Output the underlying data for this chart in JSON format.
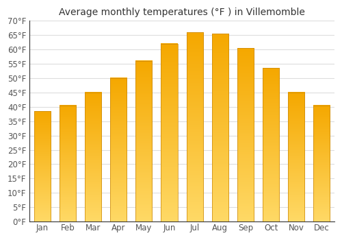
{
  "title": "Average monthly temperatures (°F ) in Villemomble",
  "months": [
    "Jan",
    "Feb",
    "Mar",
    "Apr",
    "May",
    "Jun",
    "Jul",
    "Aug",
    "Sep",
    "Oct",
    "Nov",
    "Dec"
  ],
  "values": [
    38.5,
    40.5,
    45.0,
    50.0,
    56.0,
    62.0,
    66.0,
    65.5,
    60.5,
    53.5,
    45.0,
    40.5
  ],
  "bar_color_top": "#F5A800",
  "bar_color_bottom": "#FFD966",
  "bar_edge_color": "#C8860A",
  "ylim": [
    0,
    70
  ],
  "yticks": [
    0,
    5,
    10,
    15,
    20,
    25,
    30,
    35,
    40,
    45,
    50,
    55,
    60,
    65,
    70
  ],
  "background_color": "#ffffff",
  "plot_bg_color": "#ffffff",
  "grid_color": "#dddddd",
  "title_fontsize": 10,
  "tick_fontsize": 8.5,
  "bar_width": 0.65
}
